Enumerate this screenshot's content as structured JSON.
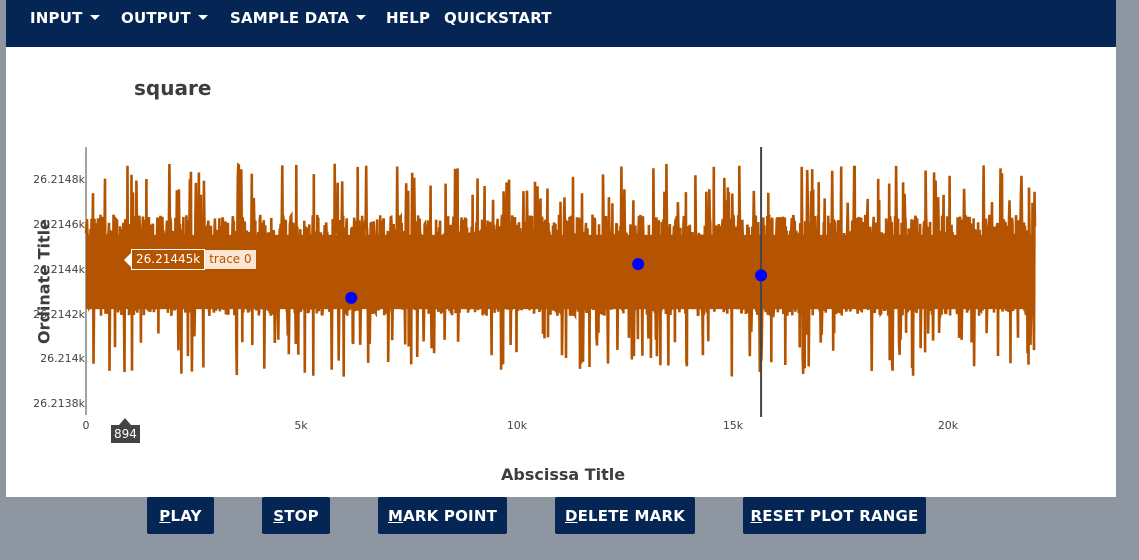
{
  "nav": {
    "items": [
      {
        "label": "INPUT",
        "dropdown": true
      },
      {
        "label": "OUTPUT",
        "dropdown": true
      },
      {
        "label": "SAMPLE DATA",
        "dropdown": true
      },
      {
        "label": "HELP",
        "dropdown": false
      },
      {
        "label": "QUICKSTART",
        "dropdown": false
      }
    ]
  },
  "colors": {
    "navbar": "#052654",
    "trace": "#b55400",
    "marker": "#0000ff",
    "background": "#8e97a1"
  },
  "hover": {
    "value": "26.21445k",
    "trace": "trace 0",
    "spike_x": "894"
  },
  "chart_data": {
    "type": "line",
    "title": "square",
    "xlabel": "Abscissa Title",
    "ylabel": "Ordinate Title",
    "x_ticks": [
      "0",
      "5k",
      "10k",
      "15k",
      "20k"
    ],
    "x_tick_values": [
      0,
      5000,
      10000,
      15000,
      20000
    ],
    "y_ticks": [
      "26.2138k",
      "26.214k",
      "26.2142k",
      "26.2144k",
      "26.2146k",
      "26.2148k"
    ],
    "y_tick_values": [
      26213.8,
      26214.0,
      26214.2,
      26214.4,
      26214.6,
      26214.8
    ],
    "xlim": [
      0,
      22000
    ],
    "ylim": [
      26213.78,
      26214.97
    ],
    "series": [
      {
        "name": "trace 0",
        "n_points": 22000,
        "y_mean": 26214.42,
        "y_noise_range": [
          26213.8,
          26214.9
        ]
      }
    ],
    "marked_points": [
      {
        "x": 6150,
        "y": 26214.3
      },
      {
        "x": 12800,
        "y": 26214.45
      },
      {
        "x": 15650,
        "y": 26214.4
      }
    ],
    "vertical_line_x": 15650,
    "grid": false
  },
  "buttons": [
    {
      "key": "P",
      "rest": "LAY"
    },
    {
      "key": "S",
      "rest": "TOP"
    },
    {
      "key": "M",
      "rest": "ARK POINT"
    },
    {
      "key": "D",
      "rest": "ELETE MARK"
    },
    {
      "key": "R",
      "rest": "ESET PLOT RANGE"
    }
  ]
}
